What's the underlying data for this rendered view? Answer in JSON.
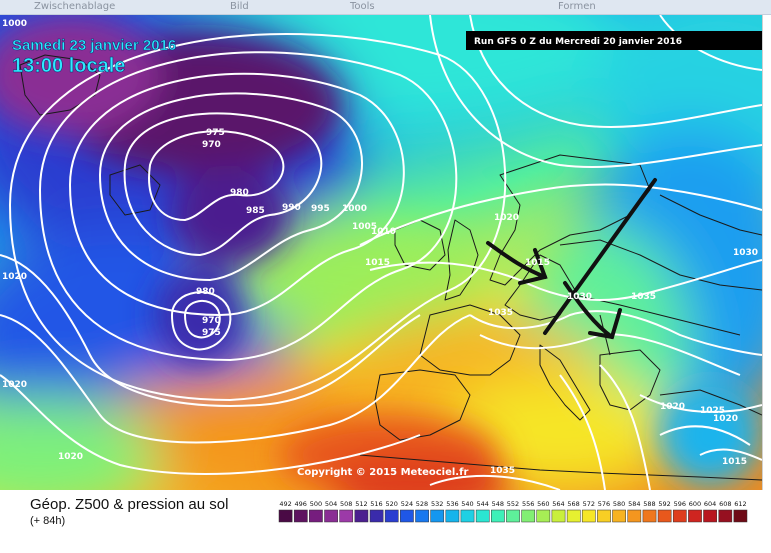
{
  "toolbar": {
    "items": [
      "Zwischenablage",
      "Bild",
      "Tools",
      "Formen"
    ]
  },
  "map": {
    "date_line": "Samedi 23 janvier 2016",
    "time_line": "13:00 locale",
    "run_label": "Run GFS 0 Z du Mercredi 20 janvier 2016",
    "copyright": "Copyright © 2015 Meteociel.fr",
    "pressure_labels": [
      "1000",
      "975",
      "970",
      "980",
      "985",
      "990",
      "995",
      "1000",
      "1005",
      "1010",
      "1015",
      "1020",
      "1030",
      "1035",
      "1035",
      "1020",
      "980",
      "970",
      "975",
      "1020",
      "1020",
      "1030",
      "1025",
      "1020",
      "1015",
      "1035",
      "1020",
      "1015"
    ]
  },
  "legend": {
    "title": "Géop. Z500 & pression au sol",
    "subtitle": "(+ 84h)",
    "scale_values": [
      "492",
      "496",
      "500",
      "504",
      "508",
      "512",
      "516",
      "520",
      "524",
      "528",
      "532",
      "536",
      "540",
      "544",
      "548",
      "552",
      "556",
      "560",
      "564",
      "568",
      "572",
      "576",
      "580",
      "584",
      "588",
      "592",
      "596",
      "600",
      "604",
      "608",
      "612"
    ],
    "scale_colors": [
      "#4a0a45",
      "#5e1360",
      "#761d7e",
      "#8a2d94",
      "#9c3aa8",
      "#4b1f8f",
      "#3a2bab",
      "#2a3ed0",
      "#1f57e6",
      "#1878ef",
      "#1597f0",
      "#15b4ec",
      "#1ed0e4",
      "#2be6d2",
      "#3ef0b8",
      "#5ef09a",
      "#82ef74",
      "#a7ee55",
      "#c9ef3d",
      "#e6f030",
      "#f6e628",
      "#f8cf24",
      "#f7b321",
      "#f4961f",
      "#ef771d",
      "#e8581c",
      "#de3d1d",
      "#cf2520",
      "#b8161f",
      "#961020",
      "#6e0a16"
    ]
  }
}
